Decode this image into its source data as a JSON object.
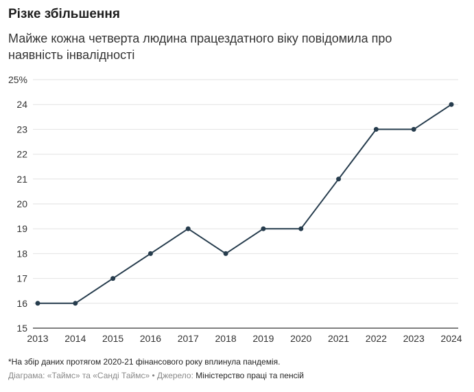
{
  "title": "Різке збільшення",
  "subtitle": "Майже кожна четверта людина працездатного віку повідомила про наявність інвалідності",
  "footnote": "*На збір даних протягом 2020-21 фінансового року вплинула пандемія.",
  "credits": {
    "chart_label": "Діаграма: «Таймс» та «Санді Таймс»",
    "separator": "•",
    "source_label": "Джерело:",
    "source_name": "Міністерство праці та пенсій"
  },
  "chart_data": {
    "type": "line",
    "title": "Різке збільшення",
    "subtitle": "Майже кожна четверта людина працездатного віку повідомила про наявність інвалідності",
    "x": [
      "2013",
      "2014",
      "2015",
      "2016",
      "2017",
      "2018",
      "2019",
      "2020",
      "2021",
      "2022",
      "2023",
      "2024"
    ],
    "series": [
      {
        "values": [
          16,
          16,
          17,
          18,
          19,
          18,
          19,
          19,
          21,
          23,
          23,
          24
        ]
      }
    ],
    "ylim": [
      15,
      25
    ],
    "yticks": [
      15,
      16,
      17,
      18,
      19,
      20,
      21,
      22,
      23,
      24,
      25
    ],
    "ytick_labels": [
      "15",
      "16",
      "17",
      "18",
      "19",
      "20",
      "21",
      "22",
      "23",
      "24",
      "25%"
    ],
    "grid": true,
    "line_color": "#263c4d",
    "grid_color": "#e2e2e2"
  }
}
